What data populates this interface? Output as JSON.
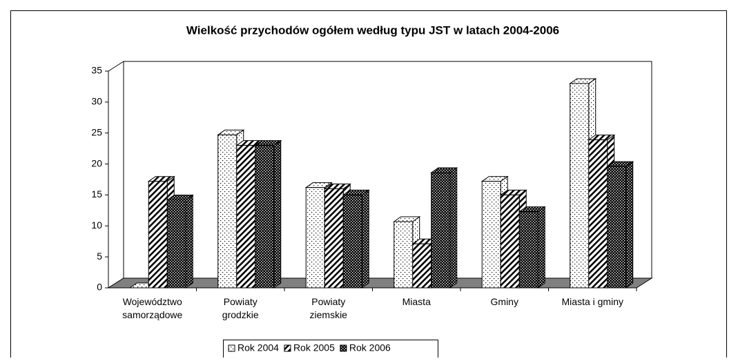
{
  "chart_data": {
    "type": "bar3d",
    "title": "Wielkość przychodów ogółem według typu JST w latach 2004-2006",
    "categories": [
      "Województwo samorządowe",
      "Powiaty grodzkie",
      "Powiaty ziemskie",
      "Miasta",
      "Gminy",
      "Miasta i gminy"
    ],
    "series": [
      {
        "name": "Rok 2004",
        "color": "#ffffff",
        "pattern": "dots",
        "values": [
          0,
          24.7,
          16.2,
          10.7,
          17.2,
          33
        ]
      },
      {
        "name": "Rok 2005",
        "color": "#ffffff",
        "pattern": "diagonal",
        "values": [
          17.2,
          23,
          16,
          7.1,
          15,
          23.9
        ]
      },
      {
        "name": "Rok 2006",
        "color": "#000000",
        "pattern": "checker",
        "values": [
          14.2,
          23,
          15,
          18.6,
          12.3,
          19.6
        ]
      }
    ],
    "ylim": [
      0,
      35
    ],
    "yticks": [
      0,
      5,
      10,
      15,
      20,
      25,
      30,
      35
    ],
    "grid": false,
    "legend": "bottom"
  }
}
